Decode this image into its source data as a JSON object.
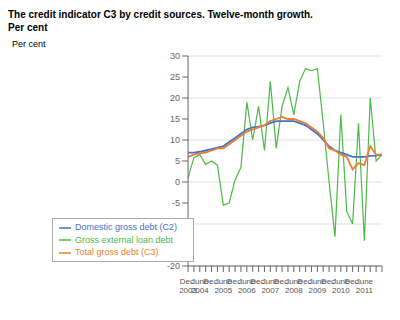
{
  "chart_data": {
    "type": "line",
    "title": "The credit indicator C3 by credit sources. Twelve-month growth.",
    "subtitle": "Per cent",
    "ylabel": "Per cent",
    "categories": [
      "Dec.\n2003",
      null,
      "June\n2004",
      null,
      "Dec.",
      null,
      "June\n2005",
      null,
      "Dec.",
      null,
      "June\n2006",
      null,
      "Dec.",
      null,
      "June\n2007",
      null,
      "Dec.",
      null,
      "June\n2008",
      null,
      "Dec.",
      null,
      "June\n2009",
      null,
      "Dec.",
      null,
      "June\n2010",
      null,
      "Dec.",
      null,
      "June\n2011",
      null,
      null,
      null
    ],
    "series": [
      {
        "name": "Gross external loan debt",
        "color": "#4db848",
        "values": [
          1.0,
          5.8,
          6.5,
          4.2,
          5.0,
          4.0,
          -5.5,
          -5.0,
          0.5,
          3.5,
          19.0,
          10.0,
          18.0,
          7.5,
          24.0,
          8.0,
          18.0,
          22.5,
          16.0,
          24.0,
          27.0,
          26.5,
          27.0,
          14.0,
          0.0,
          -13.0,
          16.0,
          -7.0,
          -10.0,
          14.0,
          -14.0,
          20.0,
          5.0,
          6.5
        ]
      },
      {
        "name": "Domestic gross debt (C2)",
        "color": "#4472c4",
        "values": [
          7.0,
          7.0,
          7.2,
          7.5,
          7.8,
          8.2,
          8.5,
          9.5,
          10.5,
          11.5,
          12.5,
          13.0,
          13.2,
          13.5,
          14.0,
          14.5,
          14.5,
          14.5,
          14.5,
          14.0,
          13.5,
          12.5,
          11.5,
          10.0,
          8.5,
          7.5,
          7.0,
          6.5,
          6.0,
          6.0,
          6.0,
          6.2,
          6.3,
          6.5
        ]
      },
      {
        "name": "Total gross debt (C3)",
        "color": "#ed7d31",
        "values": [
          6.0,
          6.5,
          6.8,
          7.0,
          7.5,
          8.0,
          8.0,
          9.0,
          10.0,
          11.0,
          12.0,
          12.5,
          13.0,
          13.5,
          14.5,
          15.0,
          15.5,
          15.0,
          15.0,
          14.5,
          14.0,
          13.0,
          12.0,
          10.5,
          8.0,
          7.5,
          6.5,
          6.0,
          3.0,
          4.5,
          4.0,
          8.5,
          6.5,
          6.5
        ]
      }
    ],
    "ylim": [
      -20,
      30
    ],
    "yticks": [
      -20,
      -15,
      -10,
      -5,
      0,
      5,
      10,
      15,
      20,
      25,
      30
    ],
    "grid": true,
    "legend": "lower left"
  }
}
